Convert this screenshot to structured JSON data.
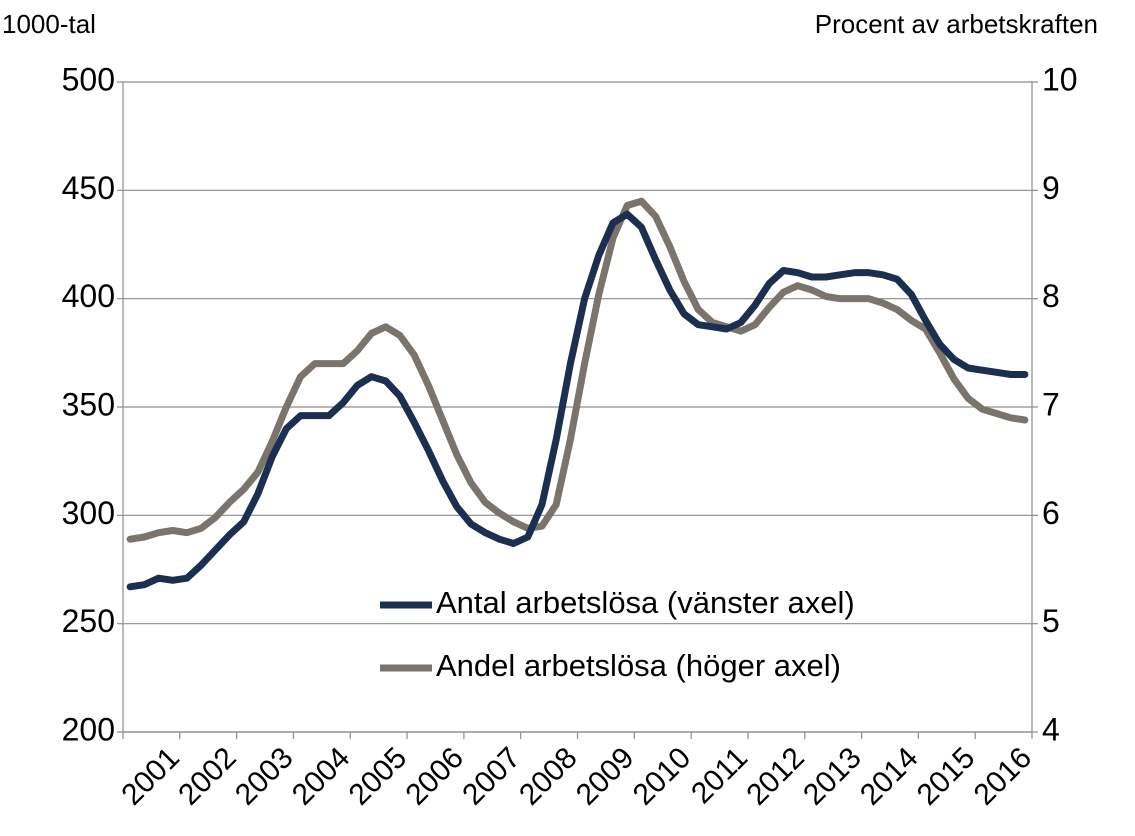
{
  "chart_data": {
    "type": "line",
    "ylabel": "1000-tal",
    "y2label": "Procent av arbetskraften",
    "categories": [
      "2001",
      null,
      null,
      null,
      "2002",
      null,
      null,
      null,
      "2003",
      null,
      null,
      null,
      "2004",
      null,
      null,
      null,
      "2005",
      null,
      null,
      null,
      "2006",
      null,
      null,
      null,
      "2007",
      null,
      null,
      null,
      "2008",
      null,
      null,
      null,
      "2009",
      null,
      null,
      null,
      "2010",
      null,
      null,
      null,
      "2011",
      null,
      null,
      null,
      "2012",
      null,
      null,
      null,
      "2013",
      null,
      null,
      null,
      "2014",
      null,
      null,
      null,
      "2015",
      null,
      null,
      null,
      "2016",
      null,
      null,
      null
    ],
    "series": [
      {
        "name": "Antal arbetslösa (vänster axel)",
        "color": "#1c2f50",
        "axis": "y",
        "values": [
          267,
          268,
          271,
          270,
          271,
          277,
          284,
          291,
          297,
          310,
          327,
          340,
          346,
          346,
          346,
          352,
          360,
          364,
          362,
          355,
          343,
          330,
          316,
          304,
          296,
          292,
          289,
          287,
          290,
          305,
          335,
          370,
          400,
          420,
          435,
          439,
          433,
          418,
          404,
          393,
          388,
          387,
          386,
          389,
          397,
          407,
          413,
          412,
          410,
          410,
          411,
          412,
          412,
          411,
          409,
          402,
          390,
          379,
          372,
          368,
          367,
          366,
          365,
          365
        ]
      },
      {
        "name": "Andel arbetslösa (höger axel)",
        "color": "#7a746c",
        "axis": "y2",
        "values": [
          5.78,
          5.8,
          5.84,
          5.86,
          5.84,
          5.88,
          5.98,
          6.12,
          6.24,
          6.4,
          6.68,
          7.0,
          7.28,
          7.4,
          7.4,
          7.4,
          7.52,
          7.68,
          7.74,
          7.66,
          7.48,
          7.2,
          6.88,
          6.56,
          6.3,
          6.12,
          6.02,
          5.94,
          5.88,
          5.9,
          6.1,
          6.7,
          7.4,
          8.04,
          8.56,
          8.86,
          8.9,
          8.76,
          8.48,
          8.16,
          7.9,
          7.78,
          7.74,
          7.7,
          7.76,
          7.92,
          8.06,
          8.12,
          8.08,
          8.02,
          8.0,
          8.0,
          8.0,
          7.96,
          7.9,
          7.8,
          7.72,
          7.5,
          7.26,
          7.08,
          6.98,
          6.94,
          6.9,
          6.88
        ]
      }
    ],
    "ylim": [
      200,
      500
    ],
    "yticks": [
      200,
      250,
      300,
      350,
      400,
      450,
      500
    ],
    "y2lim": [
      4,
      10
    ],
    "y2ticks": [
      4,
      5,
      6,
      7,
      8,
      9,
      10
    ],
    "grid": true
  }
}
